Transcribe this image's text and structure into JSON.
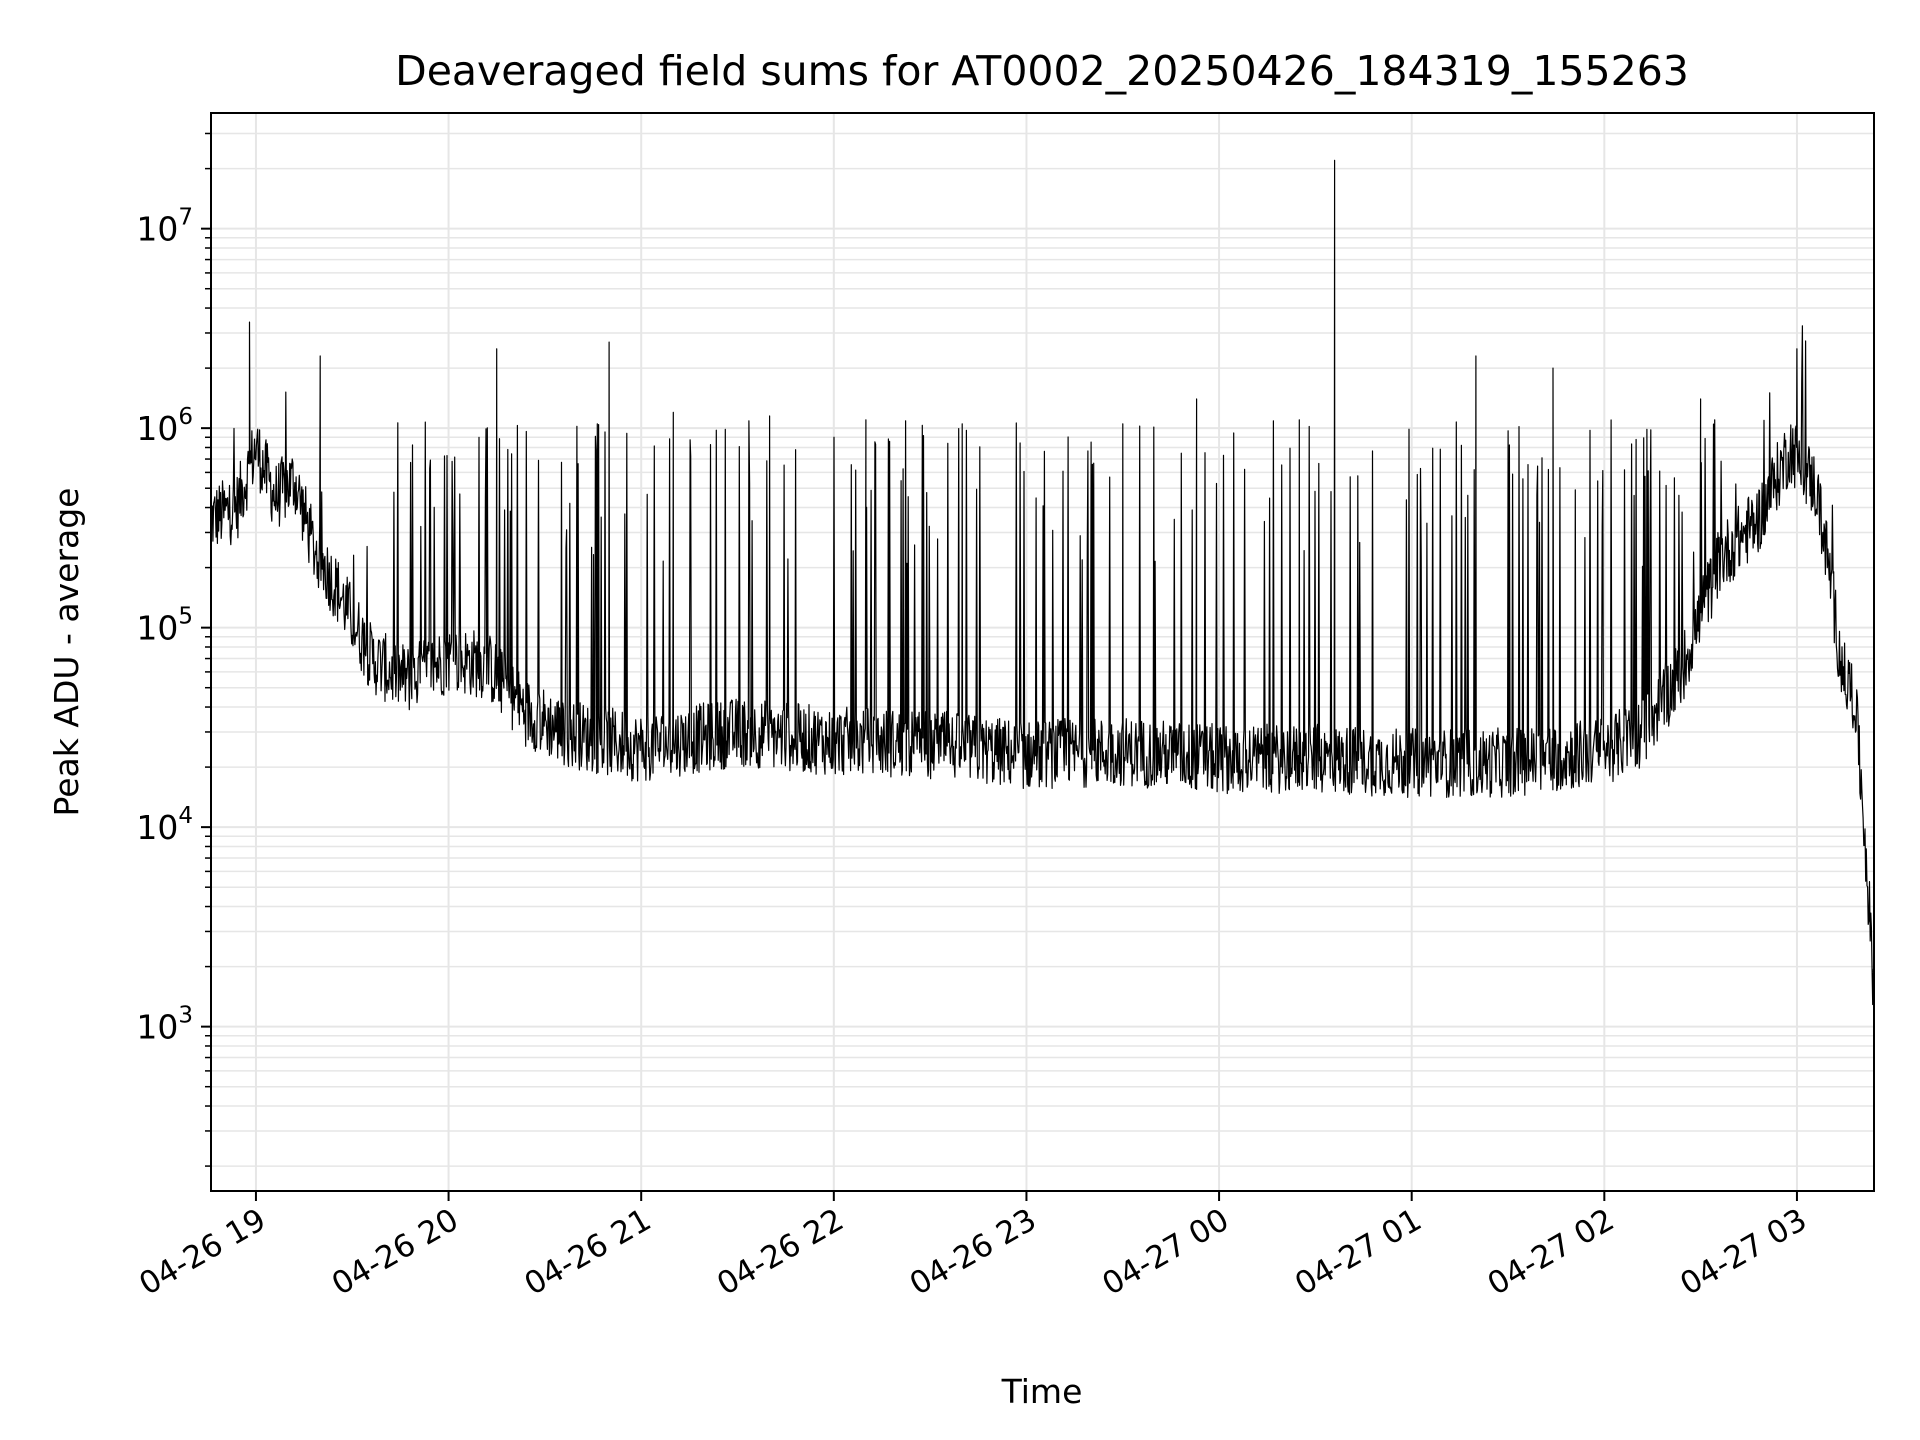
{
  "chart_data": {
    "type": "line",
    "title": "Deaveraged field sums for AT0002_20250426_184319_155263",
    "xlabel": "Time",
    "ylabel": "Peak ADU - average",
    "y_scale": "log",
    "ylim": [
      150,
      38000000
    ],
    "xlim": [
      "2025-04-26 18:46",
      "2025-04-27 03:24"
    ],
    "grid": "major and minor",
    "line_color": "#000000",
    "x_ticks": [
      {
        "label": "04-26 19",
        "time": "2025-04-26 19:00"
      },
      {
        "label": "04-26 20",
        "time": "2025-04-26 20:00"
      },
      {
        "label": "04-26 21",
        "time": "2025-04-26 21:00"
      },
      {
        "label": "04-26 22",
        "time": "2025-04-26 22:00"
      },
      {
        "label": "04-26 23",
        "time": "2025-04-26 23:00"
      },
      {
        "label": "04-27 00",
        "time": "2025-04-27 00:00"
      },
      {
        "label": "04-27 01",
        "time": "2025-04-27 01:00"
      },
      {
        "label": "04-27 02",
        "time": "2025-04-27 02:00"
      },
      {
        "label": "04-27 03",
        "time": "2025-04-27 03:00"
      }
    ],
    "y_ticks": [
      {
        "base": "10",
        "exp": "3",
        "value": 1000
      },
      {
        "base": "10",
        "exp": "4",
        "value": 10000
      },
      {
        "base": "10",
        "exp": "5",
        "value": 100000
      },
      {
        "base": "10",
        "exp": "6",
        "value": 1000000
      },
      {
        "base": "10",
        "exp": "7",
        "value": 10000000
      }
    ],
    "baseline": [
      [
        "2025-04-26 18:46",
        350000
      ],
      [
        "2025-04-26 18:54",
        400000
      ],
      [
        "2025-04-26 19:00",
        800000
      ],
      [
        "2025-04-26 19:06",
        450000
      ],
      [
        "2025-04-26 19:12",
        550000
      ],
      [
        "2025-04-26 19:18",
        250000
      ],
      [
        "2025-04-26 19:24",
        170000
      ],
      [
        "2025-04-26 19:30",
        110000
      ],
      [
        "2025-04-26 19:36",
        70000
      ],
      [
        "2025-04-26 19:42",
        60000
      ],
      [
        "2025-04-26 19:48",
        55000
      ],
      [
        "2025-04-26 20:00",
        70000
      ],
      [
        "2025-04-26 20:12",
        65000
      ],
      [
        "2025-04-26 20:24",
        38000
      ],
      [
        "2025-04-26 20:36",
        30000
      ],
      [
        "2025-04-26 20:48",
        27000
      ],
      [
        "2025-04-26 21:00",
        25000
      ],
      [
        "2025-04-26 21:30",
        30000
      ],
      [
        "2025-04-26 22:00",
        27000
      ],
      [
        "2025-04-26 22:30",
        26000
      ],
      [
        "2025-04-26 23:00",
        23000
      ],
      [
        "2025-04-26 23:30",
        24000
      ],
      [
        "2025-04-27 00:00",
        22000
      ],
      [
        "2025-04-27 00:30",
        22000
      ],
      [
        "2025-04-27 01:00",
        21000
      ],
      [
        "2025-04-27 01:30",
        21000
      ],
      [
        "2025-04-27 02:00",
        24000
      ],
      [
        "2025-04-27 02:12",
        30000
      ],
      [
        "2025-04-27 02:24",
        60000
      ],
      [
        "2025-04-27 02:36",
        220000
      ],
      [
        "2025-04-27 02:48",
        350000
      ],
      [
        "2025-04-27 02:58",
        800000
      ],
      [
        "2025-04-27 03:06",
        500000
      ],
      [
        "2025-04-27 03:10",
        200000
      ],
      [
        "2025-04-27 03:14",
        60000
      ],
      [
        "2025-04-27 03:18",
        45000
      ],
      [
        "2025-04-27 03:21",
        10000
      ],
      [
        "2025-04-27 03:24",
        1500
      ]
    ],
    "peaks": [
      [
        "2025-04-26 18:58",
        3400000
      ],
      [
        "2025-04-26 19:20",
        2300000
      ],
      [
        "2025-04-26 20:15",
        2500000
      ],
      [
        "2025-04-26 20:50",
        2700000
      ],
      [
        "2025-04-26 21:10",
        1200000
      ],
      [
        "2025-04-26 21:40",
        1150000
      ],
      [
        "2025-04-26 22:10",
        1100000
      ],
      [
        "2025-04-26 22:40",
        1050000
      ],
      [
        "2025-04-26 23:30",
        1050000
      ],
      [
        "2025-04-26 23:53",
        1400000
      ],
      [
        "2025-04-27 00:25",
        1100000
      ],
      [
        "2025-04-27 00:36",
        22000000
      ],
      [
        "2025-04-27 01:20",
        2300000
      ],
      [
        "2025-04-27 01:44",
        2000000
      ],
      [
        "2025-04-27 02:30",
        1400000
      ],
      [
        "2025-04-27 03:00",
        2500000
      ]
    ]
  }
}
